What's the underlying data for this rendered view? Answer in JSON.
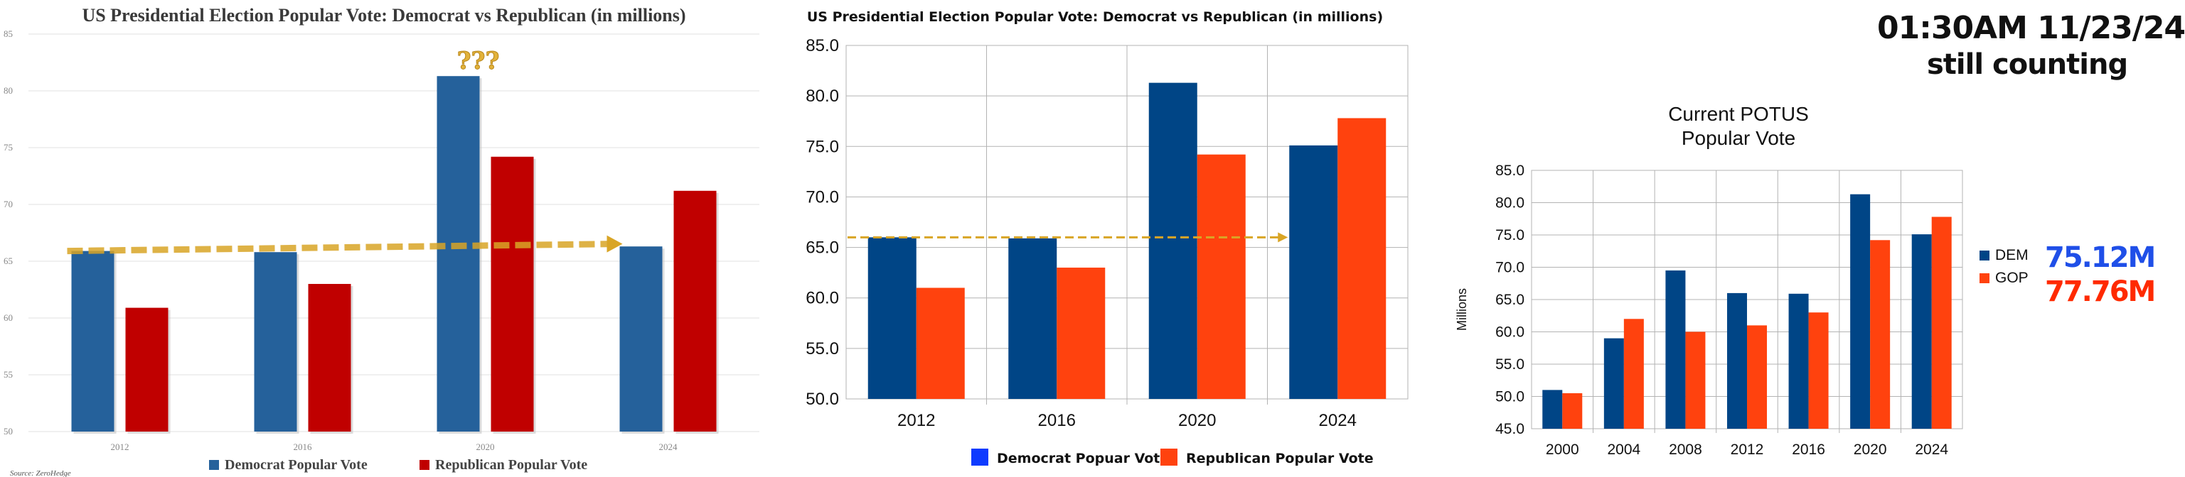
{
  "colors": {
    "p1_dem": "#25619b",
    "p1_rep": "#c00000",
    "p2_dem": "#004586",
    "p2_rep": "#ff420e",
    "p2_legend_dem": "#0e3bff",
    "trend": "#d9a526",
    "stamp_dem": "#1f4fe8",
    "stamp_rep": "#ff2a00"
  },
  "panel1": {
    "source": "Source: ZeroHedge",
    "annotation": "???",
    "legend": [
      "Democrat Popular Vote",
      "Republican Popular Vote"
    ],
    "chart_data": {
      "type": "bar",
      "title": "US Presidential Election Popular Vote: Democrat vs Republican (in millions)",
      "categories": [
        "2012",
        "2016",
        "2020",
        "2024"
      ],
      "ylim": [
        50,
        85
      ],
      "yticks": [
        "50",
        "55",
        "60",
        "65",
        "70",
        "75",
        "80",
        "85"
      ],
      "series": [
        {
          "name": "Democrat Popular Vote",
          "values": [
            65.9,
            65.8,
            81.3,
            66.3
          ]
        },
        {
          "name": "Republican Popular Vote",
          "values": [
            60.9,
            63.0,
            74.2,
            71.2
          ]
        }
      ],
      "grid": true
    }
  },
  "panel2": {
    "legend": [
      "Democrat Popuar Vote",
      "Republican Popular Vote"
    ],
    "chart_data": {
      "type": "bar",
      "title": "US Presidential Election Popular Vote: Democrat vs Republican (in millions)",
      "categories": [
        "2012",
        "2016",
        "2020",
        "2024"
      ],
      "ylim": [
        50,
        85
      ],
      "yticks": [
        "50.0",
        "55.0",
        "60.0",
        "65.0",
        "70.0",
        "75.0",
        "80.0",
        "85.0"
      ],
      "series": [
        {
          "name": "Democrat Popuar Vote",
          "values": [
            66.0,
            65.9,
            81.3,
            75.1
          ]
        },
        {
          "name": "Republican Popular Vote",
          "values": [
            61.0,
            63.0,
            74.2,
            77.8
          ]
        }
      ],
      "grid": true
    }
  },
  "panel3": {
    "stamp_line1": "01:30AM 11/23/24",
    "stamp_line2": "still counting",
    "dem_total": "75.12M",
    "gop_total": "77.76M",
    "chart_data": {
      "type": "bar",
      "title": "Current POTUS Popular Vote",
      "title_lines": [
        "Current POTUS",
        "Popular Vote"
      ],
      "ylabel": "Millions",
      "categories": [
        "2000",
        "2004",
        "2008",
        "2012",
        "2016",
        "2020",
        "2024"
      ],
      "ylim": [
        45,
        85
      ],
      "yticks": [
        "45.0",
        "50.0",
        "55.0",
        "60.0",
        "65.0",
        "70.0",
        "75.0",
        "80.0",
        "85.0"
      ],
      "series": [
        {
          "name": "DEM",
          "values": [
            51.0,
            59.0,
            69.5,
            66.0,
            65.9,
            81.3,
            75.1
          ]
        },
        {
          "name": "GOP",
          "values": [
            50.5,
            62.0,
            60.0,
            61.0,
            63.0,
            74.2,
            77.8
          ]
        }
      ],
      "legend_position": "right",
      "grid": true
    }
  }
}
